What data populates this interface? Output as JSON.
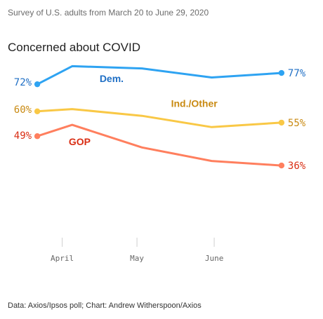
{
  "header": {
    "subtitle": "Survey of U.S. adults from March 20 to June 29, 2020"
  },
  "footer": {
    "source": "Data: Axios/Ipsos poll; Chart: Andrew Witherspoon/Axios"
  },
  "chart_data": {
    "type": "line",
    "title": "Concerned about COVID",
    "subtitle": "Survey of U.S. adults from March 20 to June 29, 2020",
    "xlabel": "",
    "ylabel": "",
    "x": [
      "2020-03-22",
      "2020-04-05",
      "2020-05-03",
      "2020-05-31",
      "2020-06-28"
    ],
    "xticks": [
      {
        "date": "2020-04-01",
        "label": "April"
      },
      {
        "date": "2020-05-01",
        "label": "May"
      },
      {
        "date": "2020-06-01",
        "label": "June"
      }
    ],
    "xlim": [
      "2020-03-20",
      "2020-06-30"
    ],
    "ylim": [
      0,
      100
    ],
    "grid": false,
    "legend": "none",
    "series": [
      {
        "name": "Dem.",
        "color": "#2ea3f2",
        "label_color": "#1f6fc5",
        "values": [
          72,
          80,
          79,
          75,
          77
        ],
        "start_label": "72%",
        "end_label": "77%"
      },
      {
        "name": "Ind./Other",
        "color": "#f9c846",
        "label_color": "#c98a12",
        "values": [
          60,
          61,
          58,
          53,
          55
        ],
        "start_label": "60%",
        "end_label": "55%"
      },
      {
        "name": "GOP",
        "color": "#ff7f5e",
        "label_color": "#d92e14",
        "values": [
          49,
          54,
          44,
          38,
          36
        ],
        "start_label": "49%",
        "end_label": "36%"
      }
    ]
  }
}
